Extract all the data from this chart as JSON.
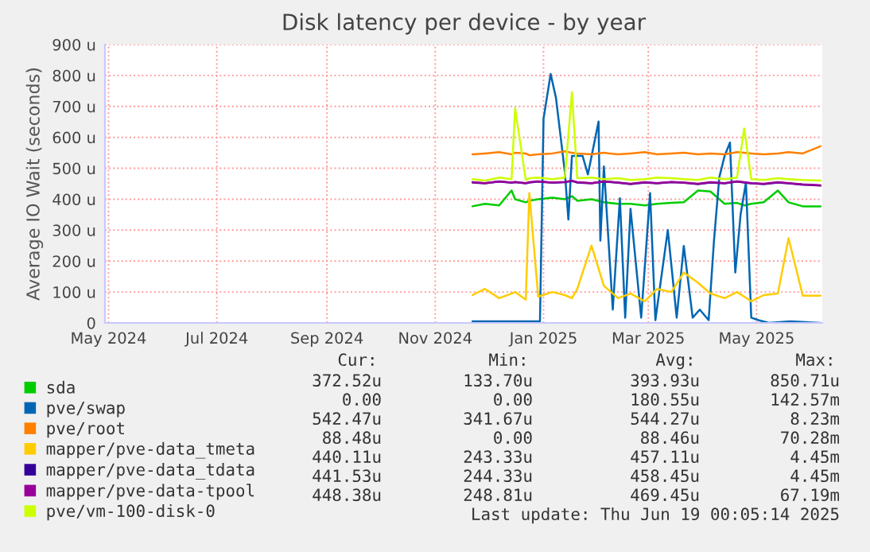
{
  "chart_data": {
    "type": "line",
    "title": "Disk latency per device - by year",
    "ylabel": "Average IO Wait (seconds)",
    "xlim": [
      "2024-04-29",
      "2025-06-07"
    ],
    "xticks": [
      {
        "value": "2024-05-01",
        "label": "May 2024"
      },
      {
        "value": "2024-07-01",
        "label": "Jul 2024"
      },
      {
        "value": "2024-09-01",
        "label": "Sep 2024"
      },
      {
        "value": "2024-11-01",
        "label": "Nov 2024"
      },
      {
        "value": "2025-01-01",
        "label": "Jan 2025"
      },
      {
        "value": "2025-03-01",
        "label": "Mar 2025"
      },
      {
        "value": "2025-05-01",
        "label": "May 2025"
      }
    ],
    "ylim": [
      0,
      900
    ],
    "yticks": [
      {
        "value": 0,
        "label": "0"
      },
      {
        "value": 100,
        "label": "100 u"
      },
      {
        "value": 200,
        "label": "200 u"
      },
      {
        "value": 300,
        "label": "300 u"
      },
      {
        "value": 400,
        "label": "400 u"
      },
      {
        "value": 500,
        "label": "500 u"
      },
      {
        "value": 600,
        "label": "600 u"
      },
      {
        "value": 700,
        "label": "700 u"
      },
      {
        "value": 800,
        "label": "800 u"
      },
      {
        "value": 900,
        "label": "900 u"
      }
    ],
    "grid": true,
    "legend": "bottom",
    "x": [
      "2024-11-22",
      "2024-11-29",
      "2024-12-07",
      "2024-12-14",
      "2024-12-16",
      "2024-12-22",
      "2024-12-24",
      "2024-12-29",
      "2025-01-06",
      "2025-01-13",
      "2025-01-17",
      "2025-01-20",
      "2025-01-28",
      "2025-02-04",
      "2025-02-12",
      "2025-02-19",
      "2025-02-27",
      "2025-03-06",
      "2025-03-14",
      "2025-03-21",
      "2025-03-29",
      "2025-04-05",
      "2025-04-13",
      "2025-04-20",
      "2025-04-24",
      "2025-04-28",
      "2025-05-05",
      "2025-05-13",
      "2025-05-19",
      "2025-05-27",
      "2025-06-06"
    ],
    "series": [
      {
        "name": "sda",
        "color": "#00cc00",
        "values": [
          377,
          385,
          380,
          428,
          400,
          390,
          395,
          400,
          405,
          400,
          410,
          395,
          400,
          390,
          385,
          385,
          380,
          385,
          388,
          390,
          428,
          425,
          385,
          388,
          380,
          385,
          390,
          428,
          390,
          377,
          377
        ]
      },
      {
        "name": "pve/swap",
        "color": "#0066b3",
        "x": [
          "2024-11-22",
          "2024-12-07",
          "2024-12-22",
          "2024-12-30",
          "2025-01-01",
          "2025-01-05",
          "2025-01-08",
          "2025-01-13",
          "2025-01-15",
          "2025-01-17",
          "2025-01-23",
          "2025-01-26",
          "2025-02-01",
          "2025-02-02",
          "2025-02-04",
          "2025-02-09",
          "2025-02-13",
          "2025-02-16",
          "2025-02-19",
          "2025-02-25",
          "2025-03-02",
          "2025-03-05",
          "2025-03-12",
          "2025-03-17",
          "2025-03-21",
          "2025-03-26",
          "2025-03-30",
          "2025-04-04",
          "2025-04-07",
          "2025-04-10",
          "2025-04-13",
          "2025-04-16",
          "2025-04-19",
          "2025-04-22",
          "2025-04-25",
          "2025-04-28",
          "2025-05-02",
          "2025-05-08",
          "2025-05-20",
          "2025-06-06"
        ],
        "values": [
          5,
          5,
          5,
          5,
          660,
          805,
          728,
          488,
          334,
          540,
          540,
          480,
          651,
          266,
          506,
          43,
          403,
          17,
          369,
          17,
          420,
          9,
          300,
          17,
          249,
          17,
          43,
          9,
          266,
          471,
          540,
          583,
          163,
          351,
          454,
          17,
          9,
          0,
          5,
          0
        ]
      },
      {
        "name": "pve/root",
        "color": "#ff8000",
        "values": [
          545,
          548,
          552,
          545,
          550,
          548,
          542,
          545,
          548,
          555,
          550,
          548,
          545,
          550,
          545,
          548,
          552,
          545,
          548,
          550,
          545,
          548,
          545,
          552,
          550,
          548,
          545,
          548,
          552,
          548,
          571
        ]
      },
      {
        "name": "mapper/pve-data_tmeta",
        "color": "#ffcc00",
        "values": [
          90,
          110,
          80,
          95,
          100,
          75,
          420,
          85,
          100,
          90,
          80,
          110,
          250,
          120,
          80,
          95,
          70,
          110,
          100,
          163,
          130,
          95,
          80,
          100,
          85,
          70,
          90,
          95,
          274,
          88,
          88
        ]
      },
      {
        "name": "mapper/pve-data_tdata",
        "color": "#330099",
        "values": [
          454,
          451,
          457,
          453,
          455,
          451,
          454,
          457,
          453,
          455,
          459,
          454,
          451,
          457,
          453,
          449,
          454,
          451,
          455,
          453,
          449,
          454,
          451,
          457,
          454,
          451,
          449,
          454,
          451,
          447,
          444
        ]
      },
      {
        "name": "mapper/pve-data-tpool",
        "color": "#990099",
        "values": [
          455,
          452,
          458,
          454,
          456,
          452,
          455,
          458,
          454,
          456,
          460,
          455,
          452,
          458,
          454,
          450,
          455,
          452,
          456,
          454,
          450,
          455,
          452,
          458,
          455,
          452,
          450,
          455,
          452,
          448,
          445
        ]
      },
      {
        "name": "pve/vm-100-disk-0",
        "color": "#ccff00",
        "values": [
          465,
          460,
          470,
          465,
          694,
          462,
          468,
          470,
          465,
          470,
          746,
          468,
          470,
          465,
          468,
          462,
          465,
          470,
          468,
          465,
          462,
          470,
          465,
          470,
          629,
          465,
          462,
          468,
          465,
          462,
          460
        ]
      }
    ],
    "annotations": [
      "Cur:",
      "Min:",
      "Avg:",
      "Max:",
      "372.52u",
      "133.70u",
      "393.93u",
      "850.71u",
      "0.00",
      "0.00",
      "180.55u",
      "142.57m",
      "542.47u",
      "341.67u",
      "544.27u",
      "8.23m",
      "88.48u",
      "0.00",
      "88.46u",
      "70.28m",
      "440.11u",
      "243.33u",
      "457.11u",
      "4.45m",
      "441.53u",
      "244.33u",
      "458.45u",
      "4.45m",
      "448.38u",
      "248.81u",
      "469.45u",
      "67.19m",
      "Last update: Thu Jun 19 00:05:14 2025"
    ]
  }
}
